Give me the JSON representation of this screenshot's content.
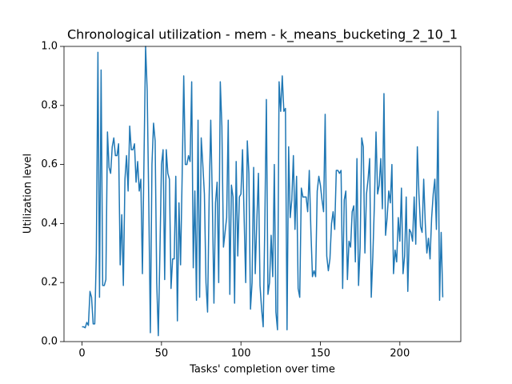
{
  "chart_data": {
    "type": "line",
    "title": "Chronological utilization - mem - k_means_bucketing_2_10_1",
    "x_label": "Tasks' completion over time",
    "y_label": "Utilization level",
    "color": "#1f77b4",
    "xlim": [
      -11.35,
      238.35
    ],
    "xticks": [
      0,
      50,
      100,
      150,
      200
    ],
    "ylim": [
      0,
      1
    ],
    "yticks": [
      {
        "value": 0,
        "label": "0.0"
      },
      {
        "value": 0.2,
        "label": "0.2"
      },
      {
        "value": 0.4,
        "label": "0.4"
      },
      {
        "value": 0.6,
        "label": "0.6"
      },
      {
        "value": 0.8,
        "label": "0.8"
      },
      {
        "value": 1,
        "label": "1.0"
      }
    ],
    "values": [
      0.05,
      0.05,
      0.047,
      0.065,
      0.055,
      0.17,
      0.15,
      0.06,
      0.06,
      0.3,
      0.98,
      0.15,
      0.92,
      0.19,
      0.19,
      0.21,
      0.71,
      0.59,
      0.57,
      0.66,
      0.69,
      0.63,
      0.63,
      0.67,
      0.26,
      0.43,
      0.19,
      0.55,
      0.63,
      0.51,
      0.73,
      0.65,
      0.65,
      0.67,
      0.54,
      0.61,
      0.51,
      0.55,
      0.23,
      0.62,
      1.0,
      0.85,
      0.47,
      0.03,
      0.6,
      0.74,
      0.68,
      0.2,
      0.02,
      0.3,
      0.6,
      0.65,
      0.21,
      0.65,
      0.57,
      0.55,
      0.18,
      0.28,
      0.28,
      0.56,
      0.07,
      0.47,
      0.26,
      0.56,
      0.9,
      0.6,
      0.6,
      0.63,
      0.61,
      0.88,
      0.25,
      0.51,
      0.14,
      0.75,
      0.15,
      0.69,
      0.6,
      0.5,
      0.2,
      0.1,
      0.49,
      0.75,
      0.48,
      0.13,
      0.47,
      0.54,
      0.2,
      0.88,
      0.73,
      0.32,
      0.37,
      0.42,
      0.75,
      0.16,
      0.53,
      0.49,
      0.13,
      0.61,
      0.29,
      0.49,
      0.5,
      0.65,
      0.42,
      0.2,
      0.68,
      0.57,
      0.11,
      0.2,
      0.59,
      0.23,
      0.41,
      0.57,
      0.19,
      0.11,
      0.05,
      0.39,
      0.82,
      0.16,
      0.2,
      0.36,
      0.22,
      0.6,
      0.1,
      0.04,
      0.88,
      0.78,
      0.9,
      0.78,
      0.79,
      0.04,
      0.66,
      0.42,
      0.48,
      0.63,
      0.38,
      0.56,
      0.18,
      0.15,
      0.52,
      0.49,
      0.49,
      0.49,
      0.44,
      0.58,
      0.38,
      0.22,
      0.24,
      0.22,
      0.51,
      0.56,
      0.53,
      0.48,
      0.44,
      0.77,
      0.29,
      0.24,
      0.28,
      0.4,
      0.44,
      0.38,
      0.58,
      0.58,
      0.57,
      0.58,
      0.18,
      0.48,
      0.51,
      0.21,
      0.34,
      0.32,
      0.44,
      0.46,
      0.27,
      0.62,
      0.19,
      0.32,
      0.69,
      0.66,
      0.3,
      0.5,
      0.55,
      0.62,
      0.15,
      0.29,
      0.47,
      0.71,
      0.5,
      0.53,
      0.62,
      0.45,
      0.84,
      0.36,
      0.42,
      0.51,
      0.47,
      0.6,
      0.23,
      0.31,
      0.27,
      0.42,
      0.34,
      0.52,
      0.23,
      0.29,
      0.49,
      0.17,
      0.38,
      0.37,
      0.34,
      0.49,
      0.33,
      0.66,
      0.5,
      0.39,
      0.37,
      0.55,
      0.4,
      0.3,
      0.35,
      0.28,
      0.42,
      0.5,
      0.55,
      0.38,
      0.78,
      0.14,
      0.37,
      0.15
    ]
  }
}
